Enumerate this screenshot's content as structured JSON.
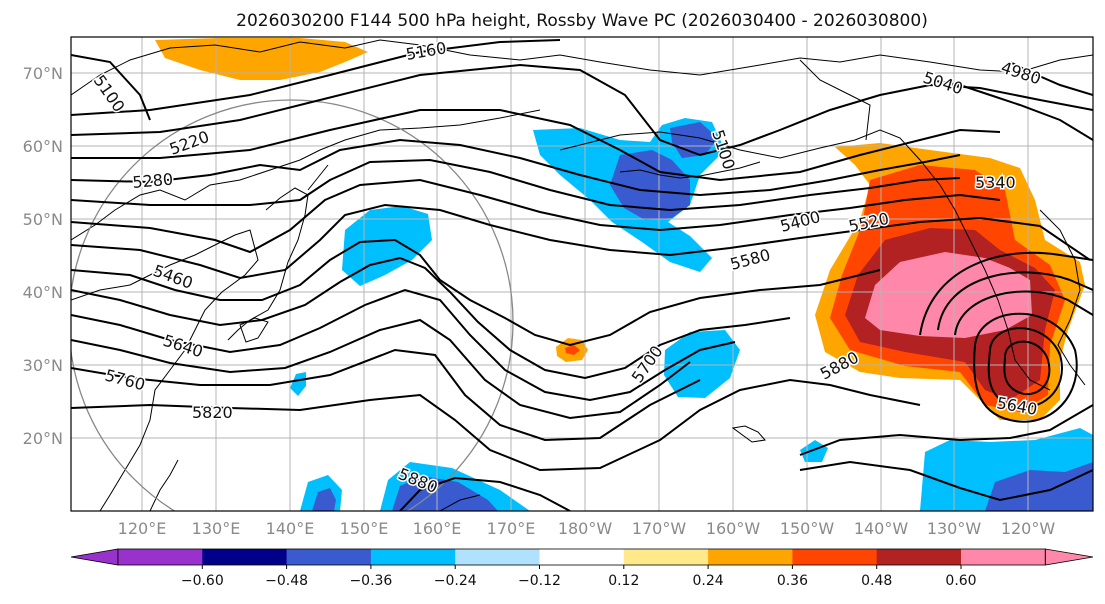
{
  "title": "2026030200 F144 500 hPa height, Rossby Wave PC (2026030400 - 2026030800)",
  "lat_labels": [
    "70°N",
    "60°N",
    "50°N",
    "40°N",
    "30°N",
    "20°N"
  ],
  "lon_labels": [
    "120°E",
    "130°E",
    "140°E",
    "150°E",
    "160°E",
    "170°E",
    "180°W",
    "170°W",
    "160°W",
    "150°W",
    "140°W",
    "130°W",
    "120°W"
  ],
  "contour_labels": [
    "5100",
    "5160",
    "5220",
    "5280",
    "5460",
    "5640",
    "5760",
    "5820",
    "5100",
    "5040",
    "4980",
    "5340",
    "5400",
    "5520",
    "5580",
    "5700",
    "5880",
    "5880",
    "5640"
  ],
  "colorbar": {
    "ticks": [
      "−0.60",
      "−0.48",
      "−0.36",
      "−0.24",
      "−0.12",
      "0.12",
      "0.24",
      "0.36",
      "0.48",
      "0.60"
    ],
    "colors": [
      "#9932cc",
      "#00008b",
      "#3a5bd0",
      "#00bfff",
      "#b0e2ff",
      "#ffffff",
      "#ffe98a",
      "#ffa500",
      "#ff4500",
      "#b22222",
      "#ff88aa",
      "#ff88aa"
    ]
  },
  "colors": {
    "contour": "#000000",
    "coast": "#000000",
    "grid": "#b4b4b4",
    "circle": "#888888"
  }
}
